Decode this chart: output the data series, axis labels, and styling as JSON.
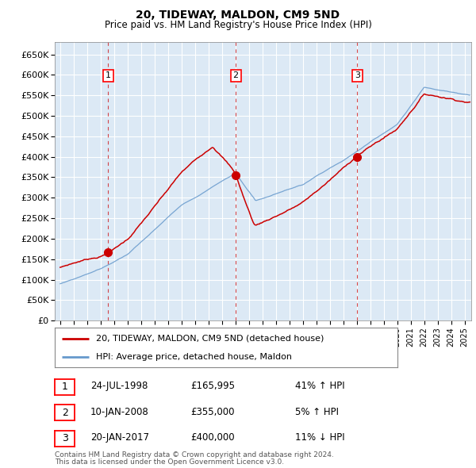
{
  "title": "20, TIDEWAY, MALDON, CM9 5ND",
  "subtitle": "Price paid vs. HM Land Registry's House Price Index (HPI)",
  "ylim": [
    0,
    680000
  ],
  "yticks": [
    0,
    50000,
    100000,
    150000,
    200000,
    250000,
    300000,
    350000,
    400000,
    450000,
    500000,
    550000,
    600000,
    650000
  ],
  "background_color": "#ffffff",
  "plot_bg_color": "#dce9f5",
  "grid_color": "#ffffff",
  "transactions": [
    {
      "num": 1,
      "date_label": "24-JUL-1998",
      "date_x": 1998.56,
      "price": 165995,
      "pct": "41%",
      "dir": "↑"
    },
    {
      "num": 2,
      "date_label": "10-JAN-2008",
      "date_x": 2008.03,
      "price": 355000,
      "pct": "5%",
      "dir": "↑"
    },
    {
      "num": 3,
      "date_label": "20-JAN-2017",
      "date_x": 2017.05,
      "price": 400000,
      "pct": "11%",
      "dir": "↓"
    }
  ],
  "legend_line1": "20, TIDEWAY, MALDON, CM9 5ND (detached house)",
  "legend_line2": "HPI: Average price, detached house, Maldon",
  "footer1": "Contains HM Land Registry data © Crown copyright and database right 2024.",
  "footer2": "This data is licensed under the Open Government Licence v3.0.",
  "red_color": "#cc0000",
  "blue_color": "#6699cc",
  "vline_color": "#cc0000",
  "xlim_left": 1994.6,
  "xlim_right": 2025.5
}
